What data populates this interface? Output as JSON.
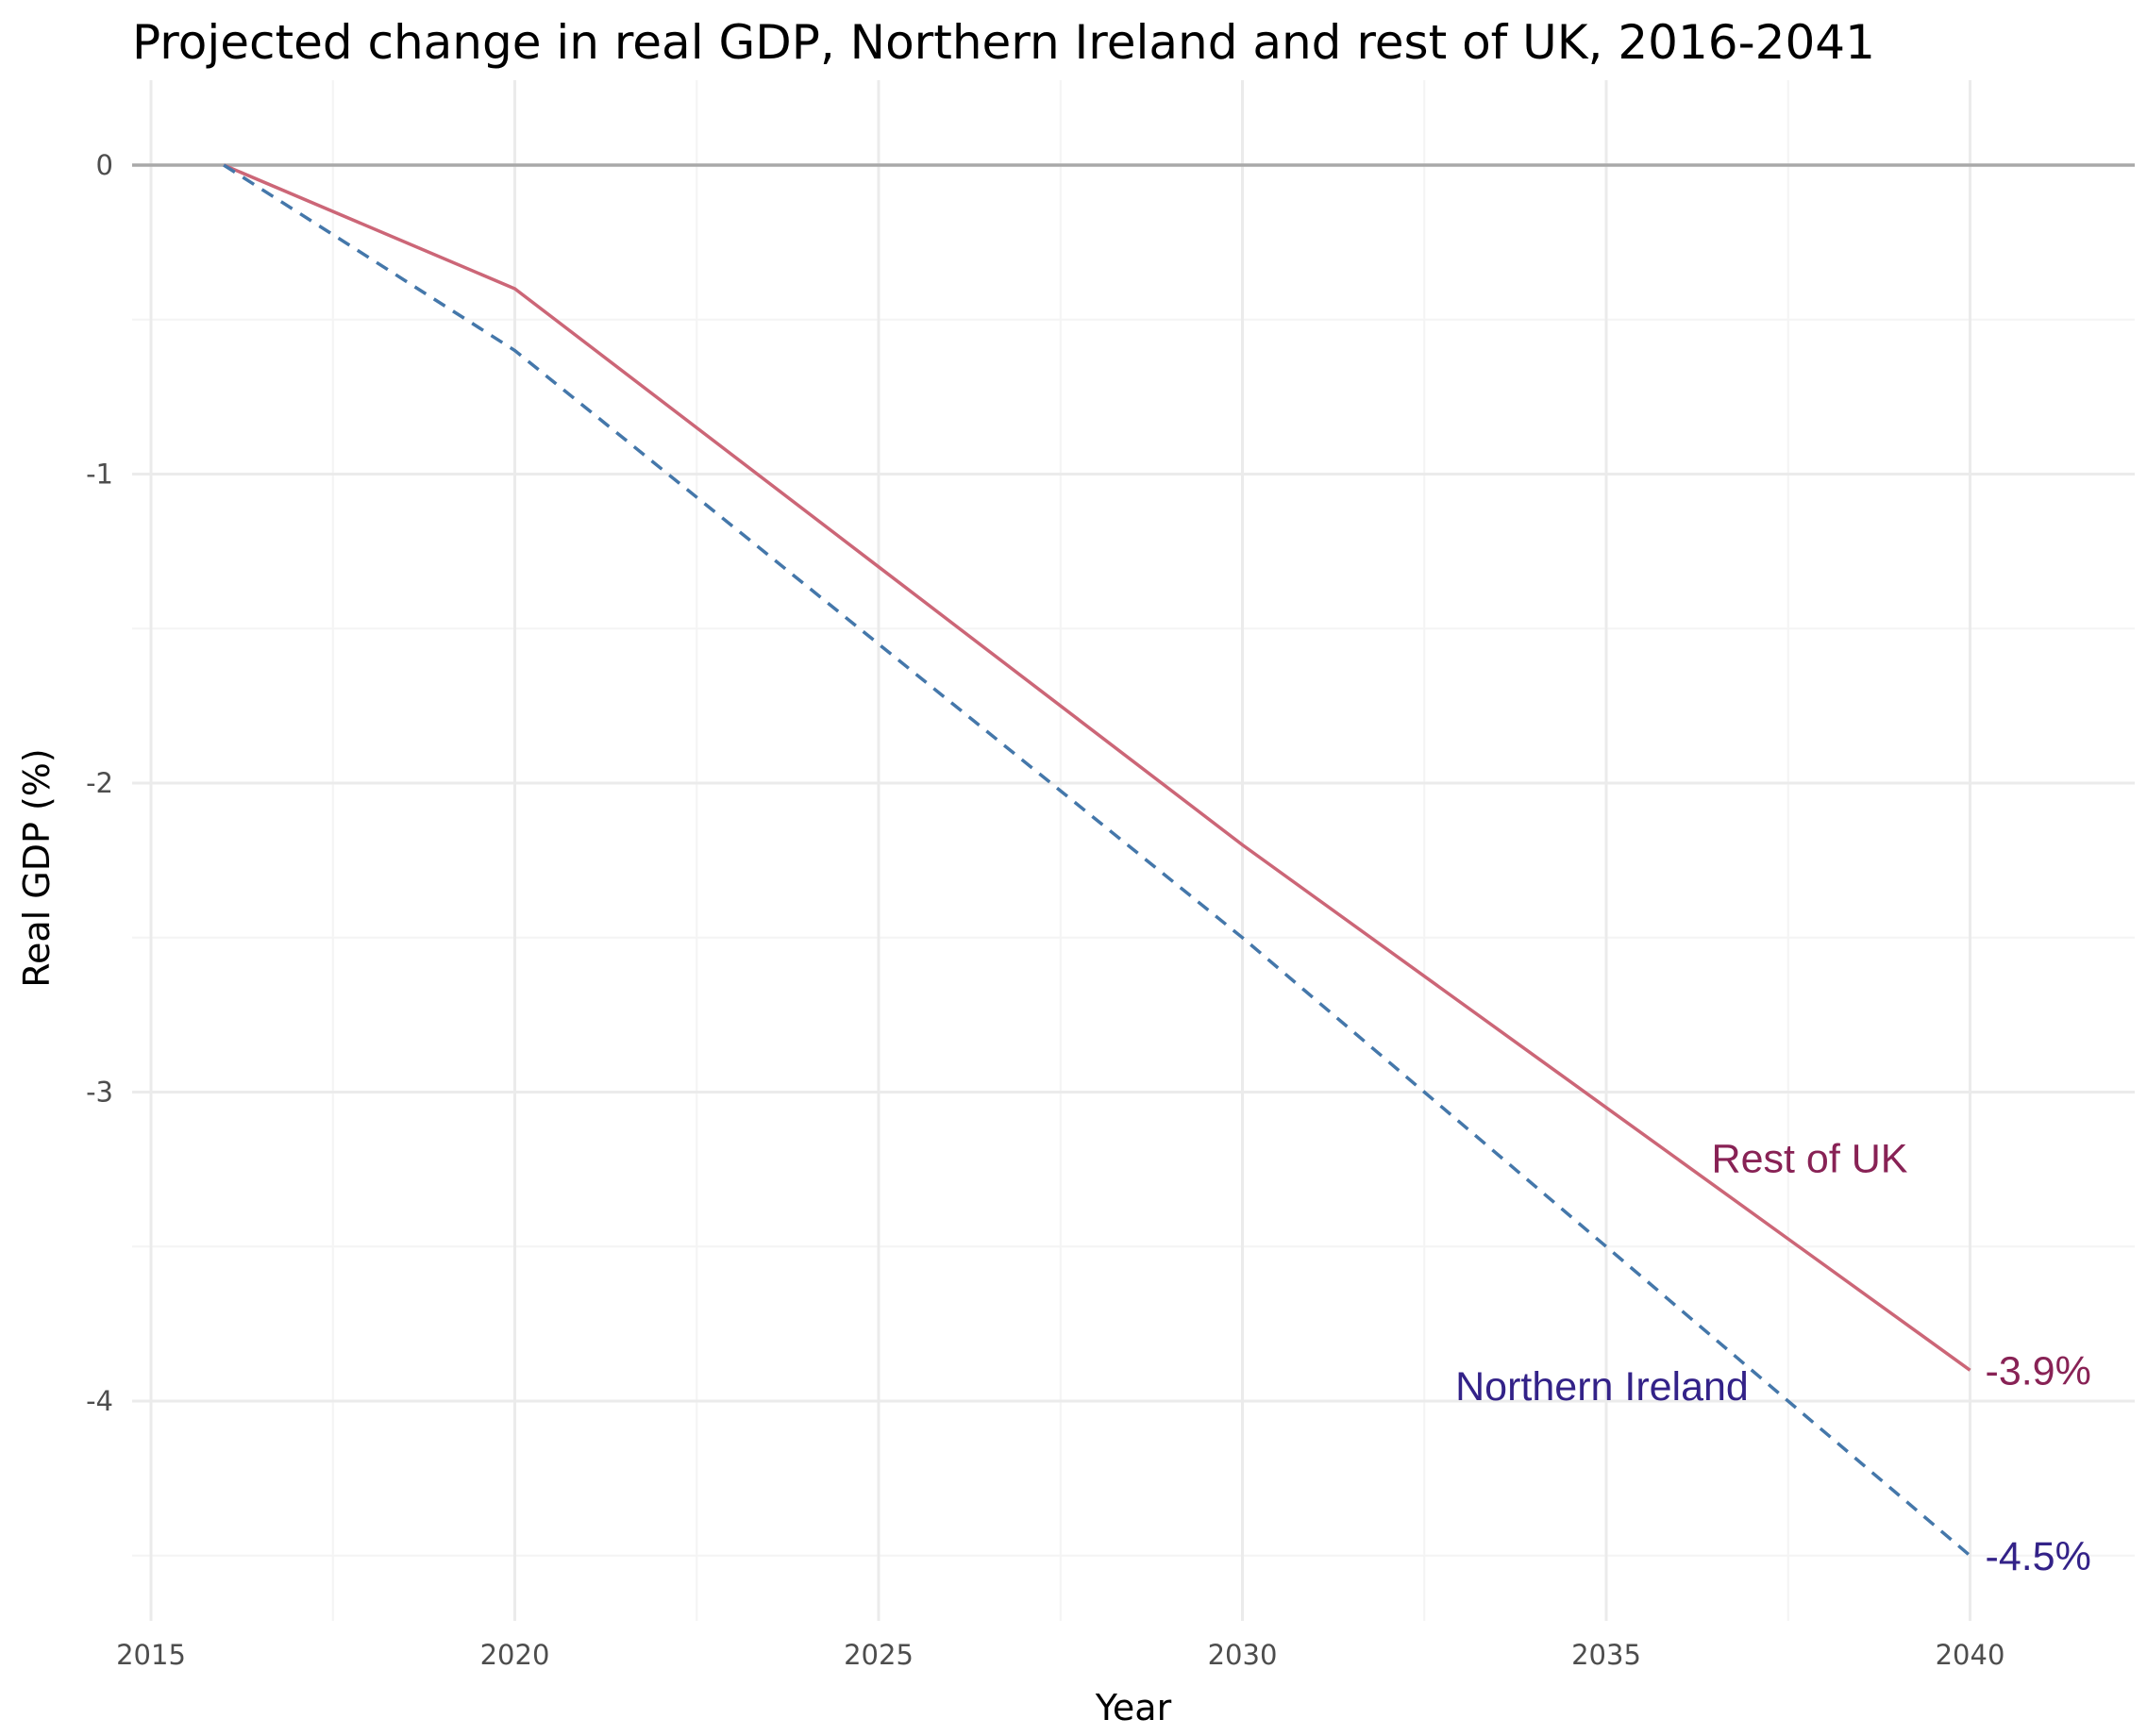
{
  "chart_data": {
    "type": "line",
    "title": "Projected change in real GDP, Northern Ireland and rest of UK, 2016-2041",
    "xlabel": "Year",
    "ylabel": "Real GDP (%)",
    "xlim": [
      2015,
      2040
    ],
    "ylim": [
      -4.5,
      0
    ],
    "x_ticks": [
      2015,
      2020,
      2025,
      2030,
      2035,
      2040
    ],
    "y_ticks": [
      0,
      -1,
      -2,
      -3,
      -4
    ],
    "grid": true,
    "reference_line": 0,
    "series": [
      {
        "name": "Rest of UK",
        "line_style": "solid",
        "line_color": "#cc6677",
        "label_color": "#882255",
        "x": [
          2016,
          2020,
          2025,
          2030,
          2035,
          2040
        ],
        "values": [
          0,
          -0.4,
          -1.3,
          -2.2,
          -3.05,
          -3.9
        ],
        "end_label": "-3.9%"
      },
      {
        "name": "Northern Ireland",
        "line_style": "dashed",
        "line_color": "#4477aa",
        "label_color": "#332288",
        "x": [
          2016,
          2020,
          2025,
          2030,
          2035,
          2040
        ],
        "values": [
          0,
          -0.6,
          -1.55,
          -2.5,
          -3.5,
          -4.5
        ],
        "end_label": "-4.5%"
      }
    ]
  }
}
